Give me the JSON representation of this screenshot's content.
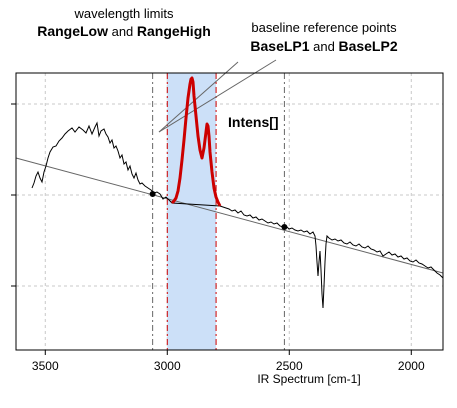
{
  "annotations": {
    "wavelength_line1": "wavelength limits",
    "range_low": "RangeLow",
    "and_1": " and ",
    "range_high": "RangeHigh",
    "baseline_line1": "baseline reference points",
    "base_lp1": "BaseLP1",
    "and_2": " and ",
    "base_lp2": "BaseLP2",
    "intens": "Intens[]"
  },
  "chart_data": {
    "type": "line",
    "xlabel": "IR Spectrum [cm-1]",
    "x_ticks": [
      3500,
      3000,
      2500,
      2000
    ],
    "x_tick_labels": [
      "3500",
      "3000",
      "2500",
      "2000"
    ],
    "xlim": [
      3620,
      1870
    ],
    "x_reversed": true,
    "grid": true,
    "range_low": 3000,
    "range_high": 2800,
    "base_lp1": 3060,
    "base_lp2": 2520,
    "colors": {
      "spectrum": "#000000",
      "highlight": "#cc0000",
      "range_band": "#cce0f8",
      "grid": "#c8c8c8"
    }
  }
}
